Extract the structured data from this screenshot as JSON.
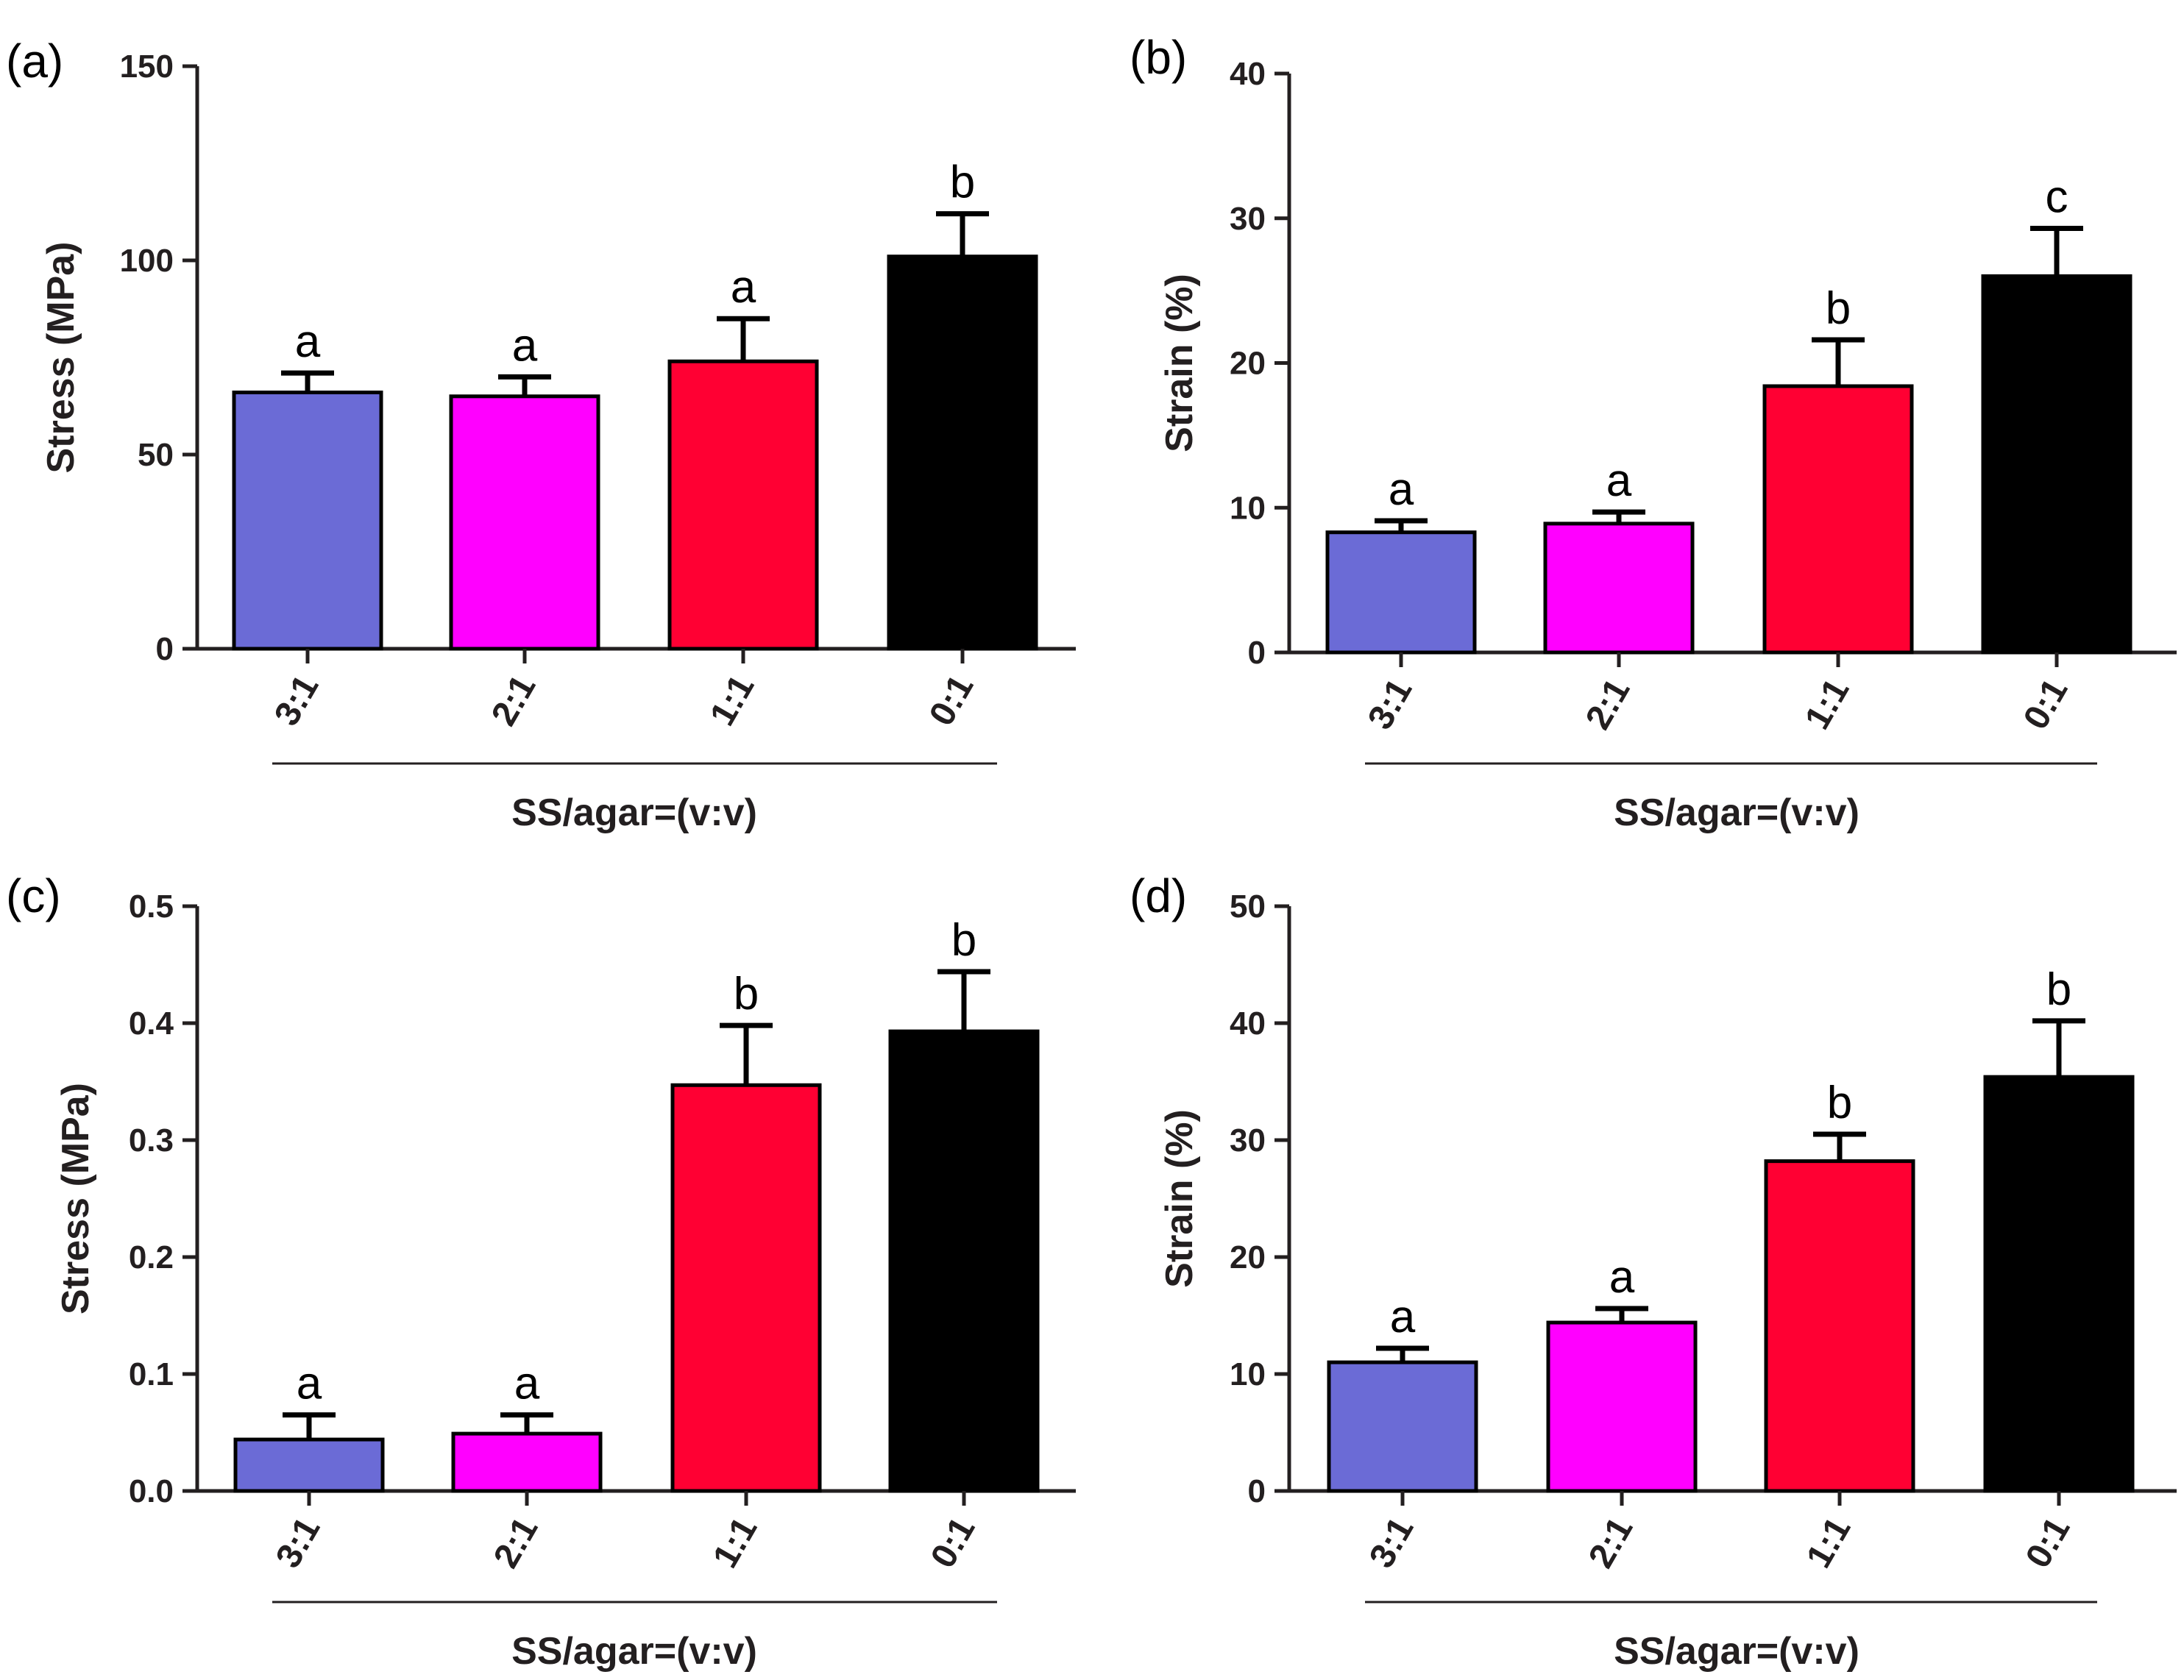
{
  "chart_data": [
    {
      "panel": "(a)",
      "type": "bar",
      "categories": [
        "3:1",
        "2:1",
        "1:1",
        "0:1"
      ],
      "values": [
        66,
        65,
        74,
        101
      ],
      "errors": [
        5,
        5,
        11,
        11
      ],
      "significance": [
        "a",
        "a",
        "a",
        "b"
      ],
      "colors": [
        "#6b6bd6",
        "#ff00ff",
        "#ff0033",
        "#000000"
      ],
      "xlabel": "SS/agar=(v:v)",
      "ylabel": "Stress (MPa)",
      "ylim": [
        0,
        150
      ],
      "yticks": [
        "0",
        "50",
        "100",
        "150"
      ]
    },
    {
      "panel": "(b)",
      "type": "bar",
      "categories": [
        "3:1",
        "2:1",
        "1:1",
        "0:1"
      ],
      "values": [
        8.3,
        8.9,
        18.4,
        26.0
      ],
      "errors": [
        0.8,
        0.8,
        3.2,
        3.3
      ],
      "significance": [
        "a",
        "a",
        "b",
        "c"
      ],
      "colors": [
        "#6b6bd6",
        "#ff00ff",
        "#ff0033",
        "#000000"
      ],
      "xlabel": "SS/agar=(v:v)",
      "ylabel": "Strain (%)",
      "ylim": [
        0,
        40
      ],
      "yticks": [
        "0",
        "10",
        "20",
        "30",
        "40"
      ]
    },
    {
      "panel": "(c)",
      "type": "bar",
      "categories": [
        "3:1",
        "2:1",
        "1:1",
        "0:1"
      ],
      "values": [
        0.044,
        0.049,
        0.347,
        0.393
      ],
      "errors": [
        0.021,
        0.016,
        0.051,
        0.051
      ],
      "significance": [
        "a",
        "a",
        "b",
        "b"
      ],
      "colors": [
        "#6b6bd6",
        "#ff00ff",
        "#ff0033",
        "#000000"
      ],
      "xlabel": "SS/agar=(v:v)",
      "ylabel": "Stress (MPa)",
      "ylim": [
        0,
        0.5
      ],
      "yticks": [
        "0.0",
        "0.1",
        "0.2",
        "0.3",
        "0.4",
        "0.5"
      ]
    },
    {
      "panel": "(d)",
      "type": "bar",
      "categories": [
        "3:1",
        "2:1",
        "1:1",
        "0:1"
      ],
      "values": [
        11.0,
        14.4,
        28.2,
        35.4
      ],
      "errors": [
        1.2,
        1.2,
        2.3,
        4.8
      ],
      "significance": [
        "a",
        "a",
        "b",
        "b"
      ],
      "colors": [
        "#6b6bd6",
        "#ff00ff",
        "#ff0033",
        "#000000"
      ],
      "xlabel": "SS/agar=(v:v)",
      "ylabel": "Strain (%)",
      "ylim": [
        0,
        50
      ],
      "yticks": [
        "0",
        "10",
        "20",
        "30",
        "40",
        "50"
      ]
    }
  ]
}
